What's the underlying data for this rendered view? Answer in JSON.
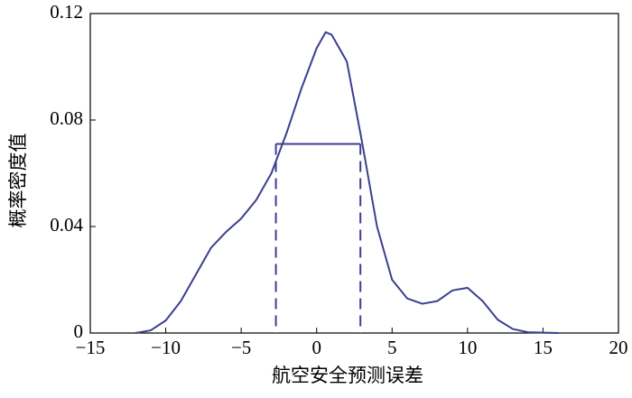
{
  "chart_data": {
    "type": "line",
    "x_label": "航空安全预测误差",
    "y_label": "概率密度值",
    "x": [
      -12,
      -11,
      -10,
      -9,
      -8,
      -7,
      -6,
      -5,
      -4,
      -3,
      -2,
      -1,
      0,
      0.6,
      1,
      2,
      3,
      4,
      5,
      6,
      7,
      8,
      9,
      10,
      11,
      12,
      13,
      14,
      16
    ],
    "series": [
      {
        "color": "#3b3f8f",
        "values": [
          0,
          0.001,
          0.0047,
          0.012,
          0.022,
          0.032,
          0.038,
          0.043,
          0.05,
          0.06,
          0.075,
          0.092,
          0.107,
          0.113,
          0.112,
          0.102,
          0.072,
          0.04,
          0.02,
          0.013,
          0.011,
          0.012,
          0.016,
          0.017,
          0.012,
          0.005,
          0.0015,
          0.0003,
          0
        ]
      }
    ],
    "interval": {
      "x": [
        -2.7,
        2.9
      ],
      "y": 0.071
    },
    "xlim": [
      -15,
      20
    ],
    "ylim": [
      0,
      0.12
    ],
    "xticks": [
      {
        "value": -15,
        "label": "−15"
      },
      {
        "value": -10,
        "label": "−10"
      },
      {
        "value": -5,
        "label": "−5"
      },
      0,
      5,
      10,
      15,
      20
    ],
    "yticks": [
      0,
      0.04,
      0.08,
      0.12
    ]
  }
}
